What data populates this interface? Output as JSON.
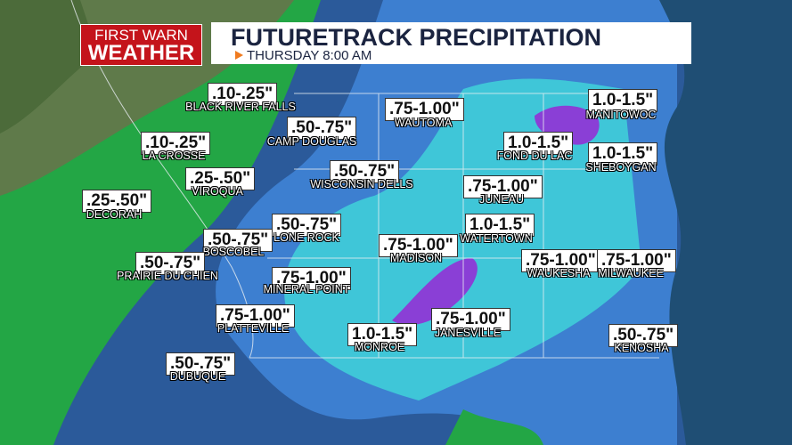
{
  "logo": {
    "line1": "FIRST WARN",
    "line2": "WEATHER"
  },
  "header": {
    "title": "FUTURETRACK PRECIPITATION",
    "subtitle": "THURSDAY 8:00 AM"
  },
  "locations": [
    {
      "name": "BLACK RIVER FALLS",
      "amount": ".10-.25\""
    },
    {
      "name": "CAMP DOUGLAS",
      "amount": ".50-.75\""
    },
    {
      "name": "WAUTOMA",
      "amount": ".75-1.00\""
    },
    {
      "name": "MANITOWOC",
      "amount": "1.0-1.5\""
    },
    {
      "name": "LA CROSSE",
      "amount": ".10-.25\""
    },
    {
      "name": "FOND DU LAC",
      "amount": "1.0-1.5\""
    },
    {
      "name": "SHEBOYGAN",
      "amount": "1.0-1.5\""
    },
    {
      "name": "WISCONSIN DELLS",
      "amount": ".50-.75\""
    },
    {
      "name": "VIROQUA",
      "amount": ".25-.50\""
    },
    {
      "name": "JUNEAU",
      "amount": ".75-1.00\""
    },
    {
      "name": "DECORAH",
      "amount": ".25-.50\""
    },
    {
      "name": "LONE ROCK",
      "amount": ".50-.75\""
    },
    {
      "name": "WATERTOWN",
      "amount": "1.0-1.5\""
    },
    {
      "name": "BOSCOBEL",
      "amount": ".50-.75\""
    },
    {
      "name": "MADISON",
      "amount": ".75-1.00\""
    },
    {
      "name": "WAUKESHA",
      "amount": ".75-1.00\""
    },
    {
      "name": "MILWAUKEE",
      "amount": ".75-1.00\""
    },
    {
      "name": "PRAIRIE DU CHIEN",
      "amount": ".50-.75\""
    },
    {
      "name": "MINERAL POINT",
      "amount": ".75-1.00\""
    },
    {
      "name": "PLATTEVILLE",
      "amount": ".75-1.00\""
    },
    {
      "name": "MONROE",
      "amount": "1.0-1.5\""
    },
    {
      "name": "JANESVILLE",
      "amount": ".75-1.00\""
    },
    {
      "name": "KENOSHA",
      "amount": ".50-.75\""
    },
    {
      "name": "DUBUQUE",
      "amount": ".50-.75\""
    }
  ]
}
